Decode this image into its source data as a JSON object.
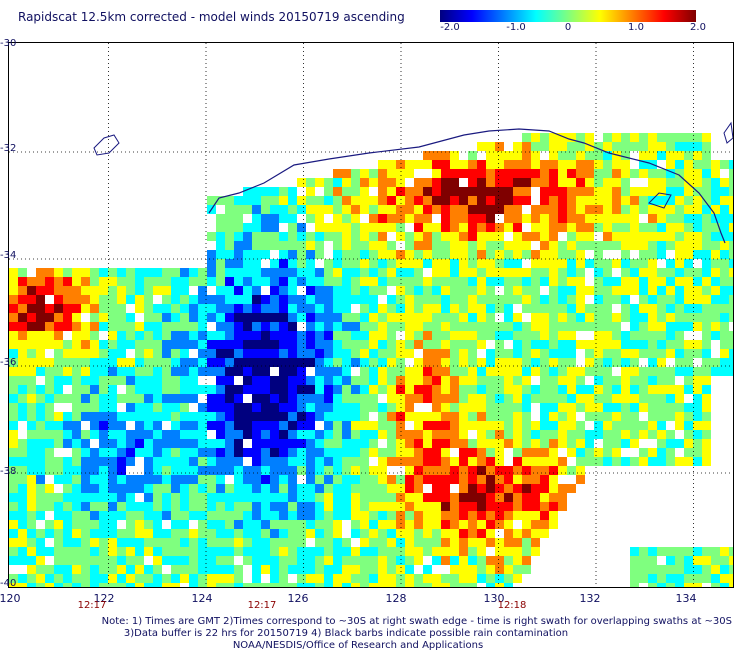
{
  "title": "Rapidscat 12.5km corrected - model winds 20150719 ascending",
  "colorbar": {
    "labels": [
      "-2.0",
      "-1.0",
      "0",
      "1.0",
      "2.0"
    ],
    "stops": [
      "#00007f",
      "#0000ff",
      "#007fff",
      "#00ffff",
      "#7fff7f",
      "#ffff00",
      "#ff7f00",
      "#ff0000",
      "#7f0000"
    ]
  },
  "axes": {
    "lat_labels": [
      "-30",
      "-32",
      "-34",
      "-36",
      "-38",
      "-40"
    ],
    "lon_labels": [
      "120",
      "122",
      "124",
      "126",
      "128",
      "130",
      "132",
      "134"
    ],
    "lat_range": [
      -40,
      -30
    ],
    "lon_range": [
      120,
      134.2
    ]
  },
  "time_labels": [
    "12:17",
    "12:17",
    "12:18"
  ],
  "notes": [
    "Note: 1) Times are GMT 2)Times correspond to ~30S at right swath edge - time is right swath for overlapping swaths at ~30S",
    "3)Data buffer is 22 hrs for 20150719 4) Black barbs indicate possible rain contamination",
    "NOAA/NESDIS/Office of Research and Applications"
  ]
}
